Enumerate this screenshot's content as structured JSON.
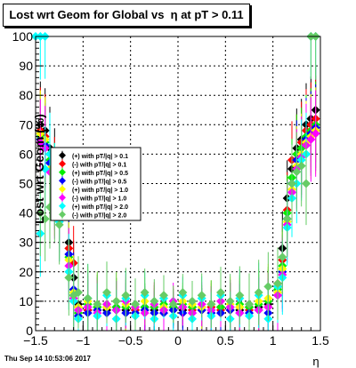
{
  "page": {
    "footer_date": "Thu Sep 14 10:53:06 2017"
  },
  "chart_data": {
    "type": "scatter",
    "title": "Lost wrt Geom for Global vs  η at pT > 0.11",
    "xlabel": "η",
    "ylabel": "Lost wrt Geom (%)",
    "xlim": [
      -1.5,
      1.5
    ],
    "ylim": [
      0,
      100
    ],
    "xticks": [
      -1.5,
      -1,
      -0.5,
      0,
      0.5,
      1,
      1.5
    ],
    "xtick_labels": [
      "−1.5",
      "−1",
      "−0.5",
      "0",
      "0.5",
      "1",
      "1.5"
    ],
    "yticks": [
      0,
      10,
      20,
      30,
      40,
      50,
      60,
      70,
      80,
      90,
      100
    ],
    "grid": true,
    "legend_position": "left-middle",
    "series": [
      {
        "name": "(+) with pT/|q| > 0.1",
        "color": "#000000",
        "points": [
          [
            -1.45,
            70
          ],
          [
            -1.4,
            68
          ],
          [
            -1.35,
            62
          ],
          [
            -1.3,
            55
          ],
          [
            -1.25,
            48
          ],
          [
            -1.15,
            30
          ],
          [
            -1.1,
            18
          ],
          [
            -1.05,
            9
          ],
          [
            -0.95,
            7
          ],
          [
            -0.85,
            8
          ],
          [
            -0.75,
            7
          ],
          [
            -0.65,
            8
          ],
          [
            -0.55,
            7
          ],
          [
            -0.45,
            7
          ],
          [
            -0.35,
            8
          ],
          [
            -0.25,
            7
          ],
          [
            -0.15,
            7
          ],
          [
            -0.05,
            8
          ],
          [
            0.05,
            7
          ],
          [
            0.15,
            8
          ],
          [
            0.25,
            7
          ],
          [
            0.35,
            7
          ],
          [
            0.45,
            8
          ],
          [
            0.55,
            7
          ],
          [
            0.65,
            7
          ],
          [
            0.75,
            8
          ],
          [
            0.85,
            8
          ],
          [
            0.95,
            9
          ],
          [
            1.05,
            15
          ],
          [
            1.1,
            28
          ],
          [
            1.15,
            45
          ],
          [
            1.2,
            55
          ],
          [
            1.25,
            62
          ],
          [
            1.3,
            65
          ],
          [
            1.35,
            70
          ],
          [
            1.4,
            72
          ],
          [
            1.45,
            75
          ]
        ]
      },
      {
        "name": "(-) with pT/|q| > 0.1",
        "color": "#ff0000",
        "points": [
          [
            -1.45,
            68
          ],
          [
            -1.4,
            66
          ],
          [
            -1.35,
            60
          ],
          [
            -1.3,
            52
          ],
          [
            -1.25,
            45
          ],
          [
            -1.15,
            28
          ],
          [
            -1.1,
            23
          ],
          [
            -1.05,
            8
          ],
          [
            -0.95,
            7
          ],
          [
            -0.85,
            7
          ],
          [
            -0.75,
            8
          ],
          [
            -0.65,
            7
          ],
          [
            -0.55,
            8
          ],
          [
            -0.45,
            7
          ],
          [
            -0.35,
            7
          ],
          [
            -0.25,
            8
          ],
          [
            -0.15,
            7
          ],
          [
            -0.05,
            7
          ],
          [
            0.05,
            8
          ],
          [
            0.15,
            7
          ],
          [
            0.25,
            7
          ],
          [
            0.35,
            8
          ],
          [
            0.45,
            7
          ],
          [
            0.55,
            7
          ],
          [
            0.65,
            8
          ],
          [
            0.75,
            7
          ],
          [
            0.85,
            7
          ],
          [
            0.95,
            8
          ],
          [
            1.05,
            16
          ],
          [
            1.1,
            24
          ],
          [
            1.15,
            41
          ],
          [
            1.2,
            58
          ],
          [
            1.25,
            60
          ],
          [
            1.3,
            64
          ],
          [
            1.35,
            68
          ],
          [
            1.4,
            70
          ],
          [
            1.45,
            72
          ]
        ]
      },
      {
        "name": "(+) with pT/|q| > 0.5",
        "color": "#00ee00",
        "points": [
          [
            -1.45,
            66
          ],
          [
            -1.4,
            64
          ],
          [
            -1.35,
            58
          ],
          [
            -1.3,
            50
          ],
          [
            -1.25,
            42
          ],
          [
            -1.15,
            25
          ],
          [
            -1.1,
            12
          ],
          [
            -1.05,
            6
          ],
          [
            -0.95,
            9
          ],
          [
            -0.85,
            8
          ],
          [
            -0.75,
            9
          ],
          [
            -0.65,
            8
          ],
          [
            -0.55,
            8
          ],
          [
            -0.45,
            9
          ],
          [
            -0.35,
            8
          ],
          [
            -0.25,
            8
          ],
          [
            -0.15,
            9
          ],
          [
            -0.05,
            8
          ],
          [
            0.05,
            9
          ],
          [
            0.15,
            8
          ],
          [
            0.25,
            8
          ],
          [
            0.35,
            9
          ],
          [
            0.45,
            8
          ],
          [
            0.55,
            8
          ],
          [
            0.65,
            9
          ],
          [
            0.75,
            8
          ],
          [
            0.85,
            9
          ],
          [
            0.95,
            10
          ],
          [
            1.05,
            14
          ],
          [
            1.1,
            22
          ],
          [
            1.15,
            40
          ],
          [
            1.2,
            52
          ],
          [
            1.25,
            60
          ],
          [
            1.3,
            62
          ],
          [
            1.35,
            66
          ],
          [
            1.4,
            68
          ],
          [
            1.45,
            70
          ]
        ]
      },
      {
        "name": "(-) with pT/|q| > 0.5",
        "color": "#0000ff",
        "points": [
          [
            -1.45,
            65
          ],
          [
            -1.4,
            63
          ],
          [
            -1.35,
            57
          ],
          [
            -1.3,
            48
          ],
          [
            -1.25,
            40
          ],
          [
            -1.15,
            26
          ],
          [
            -1.1,
            14
          ],
          [
            -1.05,
            5
          ],
          [
            -0.95,
            6
          ],
          [
            -0.85,
            7
          ],
          [
            -0.75,
            6
          ],
          [
            -0.65,
            7
          ],
          [
            -0.55,
            6
          ],
          [
            -0.45,
            6
          ],
          [
            -0.35,
            7
          ],
          [
            -0.25,
            6
          ],
          [
            -0.15,
            6
          ],
          [
            -0.05,
            7
          ],
          [
            0.05,
            6
          ],
          [
            0.15,
            6
          ],
          [
            0.25,
            7
          ],
          [
            0.35,
            6
          ],
          [
            0.45,
            6
          ],
          [
            0.55,
            7
          ],
          [
            0.65,
            6
          ],
          [
            0.75,
            6
          ],
          [
            0.85,
            7
          ],
          [
            0.95,
            6
          ],
          [
            1.05,
            12
          ],
          [
            1.1,
            20
          ],
          [
            1.15,
            38
          ],
          [
            1.2,
            50
          ],
          [
            1.25,
            58
          ],
          [
            1.3,
            60
          ],
          [
            1.35,
            65
          ],
          [
            1.4,
            67
          ],
          [
            1.45,
            69
          ]
        ]
      },
      {
        "name": "(+) with pT/|q| > 1.0",
        "color": "#ffff00",
        "points": [
          [
            -1.45,
            67
          ],
          [
            -1.4,
            65
          ],
          [
            -1.35,
            55
          ],
          [
            -1.3,
            46
          ],
          [
            -1.25,
            38
          ],
          [
            -1.15,
            24
          ],
          [
            -1.1,
            13
          ],
          [
            -1.05,
            8
          ],
          [
            -0.95,
            10
          ],
          [
            -0.85,
            9
          ],
          [
            -0.75,
            8
          ],
          [
            -0.65,
            10
          ],
          [
            -0.55,
            9
          ],
          [
            -0.45,
            8
          ],
          [
            -0.35,
            10
          ],
          [
            -0.25,
            9
          ],
          [
            -0.15,
            8
          ],
          [
            -0.05,
            9
          ],
          [
            0.05,
            10
          ],
          [
            0.15,
            9
          ],
          [
            0.25,
            8
          ],
          [
            0.35,
            9
          ],
          [
            0.45,
            10
          ],
          [
            0.55,
            9
          ],
          [
            0.65,
            8
          ],
          [
            0.75,
            9
          ],
          [
            0.85,
            10
          ],
          [
            0.95,
            11
          ],
          [
            1.05,
            13
          ],
          [
            1.1,
            21
          ],
          [
            1.15,
            37
          ],
          [
            1.2,
            48
          ],
          [
            1.25,
            56
          ],
          [
            1.3,
            60
          ],
          [
            1.35,
            64
          ],
          [
            1.4,
            66
          ],
          [
            1.45,
            68
          ]
        ]
      },
      {
        "name": "(-) with pT/|q| > 1.0",
        "color": "#ff00ff",
        "points": [
          [
            -1.45,
            64
          ],
          [
            -1.4,
            62
          ],
          [
            -1.35,
            54
          ],
          [
            -1.3,
            45
          ],
          [
            -1.25,
            37
          ],
          [
            -1.15,
            22
          ],
          [
            -1.1,
            11
          ],
          [
            -1.05,
            7
          ],
          [
            -0.95,
            8
          ],
          [
            -0.85,
            6
          ],
          [
            -0.75,
            9
          ],
          [
            -0.65,
            7
          ],
          [
            -0.55,
            10
          ],
          [
            -0.45,
            8
          ],
          [
            -0.35,
            6
          ],
          [
            -0.25,
            9
          ],
          [
            -0.15,
            7
          ],
          [
            -0.05,
            10
          ],
          [
            0.05,
            8
          ],
          [
            0.15,
            6
          ],
          [
            0.25,
            9
          ],
          [
            0.35,
            7
          ],
          [
            0.45,
            10
          ],
          [
            0.55,
            8
          ],
          [
            0.65,
            6
          ],
          [
            0.75,
            9
          ],
          [
            0.85,
            7
          ],
          [
            0.95,
            8
          ],
          [
            1.05,
            12
          ],
          [
            1.1,
            19
          ],
          [
            1.15,
            36
          ],
          [
            1.2,
            47
          ],
          [
            1.25,
            55
          ],
          [
            1.3,
            59
          ],
          [
            1.35,
            63
          ],
          [
            1.4,
            65
          ],
          [
            1.45,
            67
          ]
        ]
      },
      {
        "name": "(+) with pT/|q| > 2.0",
        "color": "#00ffff",
        "points": [
          [
            -1.5,
            100
          ],
          [
            -1.45,
            100
          ],
          [
            -1.4,
            100
          ],
          [
            -1.45,
            33
          ],
          [
            -1.4,
            55
          ],
          [
            -1.35,
            60
          ],
          [
            -1.3,
            50
          ],
          [
            -1.25,
            37
          ],
          [
            -1.15,
            20
          ],
          [
            -1.1,
            10
          ],
          [
            -1.05,
            4
          ],
          [
            -0.95,
            11
          ],
          [
            -0.85,
            5
          ],
          [
            -0.75,
            12
          ],
          [
            -0.65,
            4
          ],
          [
            -0.55,
            11
          ],
          [
            -0.45,
            5
          ],
          [
            -0.35,
            12
          ],
          [
            -0.25,
            4
          ],
          [
            -0.15,
            11
          ],
          [
            -0.05,
            5
          ],
          [
            0.05,
            12
          ],
          [
            0.15,
            4
          ],
          [
            0.25,
            11
          ],
          [
            0.35,
            5
          ],
          [
            0.45,
            12
          ],
          [
            0.55,
            4
          ],
          [
            0.65,
            11
          ],
          [
            0.75,
            5
          ],
          [
            0.85,
            12
          ],
          [
            0.95,
            4
          ],
          [
            1.05,
            15
          ],
          [
            1.1,
            18
          ],
          [
            1.15,
            35
          ],
          [
            1.2,
            45
          ],
          [
            1.25,
            50
          ],
          [
            1.3,
            58
          ],
          [
            1.35,
            60
          ],
          [
            1.4,
            100
          ],
          [
            1.45,
            100
          ]
        ]
      },
      {
        "name": "(-) with pT/|q| > 2.0",
        "color": "#66cc66",
        "points": [
          [
            -1.45,
            40
          ],
          [
            -1.4,
            38
          ],
          [
            -1.35,
            42
          ],
          [
            -1.3,
            44
          ],
          [
            -1.25,
            36
          ],
          [
            -1.15,
            18
          ],
          [
            -1.1,
            12
          ],
          [
            -1.05,
            13
          ],
          [
            -0.95,
            11
          ],
          [
            -0.85,
            9
          ],
          [
            -0.75,
            13
          ],
          [
            -0.65,
            10
          ],
          [
            -0.55,
            12
          ],
          [
            -0.45,
            9
          ],
          [
            -0.35,
            13
          ],
          [
            -0.25,
            10
          ],
          [
            -0.15,
            12
          ],
          [
            -0.05,
            9
          ],
          [
            0.05,
            13
          ],
          [
            0.15,
            10
          ],
          [
            0.25,
            12
          ],
          [
            0.35,
            9
          ],
          [
            0.45,
            13
          ],
          [
            0.55,
            10
          ],
          [
            0.65,
            12
          ],
          [
            0.75,
            9
          ],
          [
            0.85,
            13
          ],
          [
            0.95,
            15
          ],
          [
            1.05,
            16
          ],
          [
            1.1,
            25
          ],
          [
            1.15,
            38
          ],
          [
            1.2,
            50
          ],
          [
            1.25,
            54
          ],
          [
            1.3,
            56
          ],
          [
            1.35,
            50
          ],
          [
            1.4,
            100
          ],
          [
            1.45,
            100
          ]
        ]
      }
    ]
  }
}
